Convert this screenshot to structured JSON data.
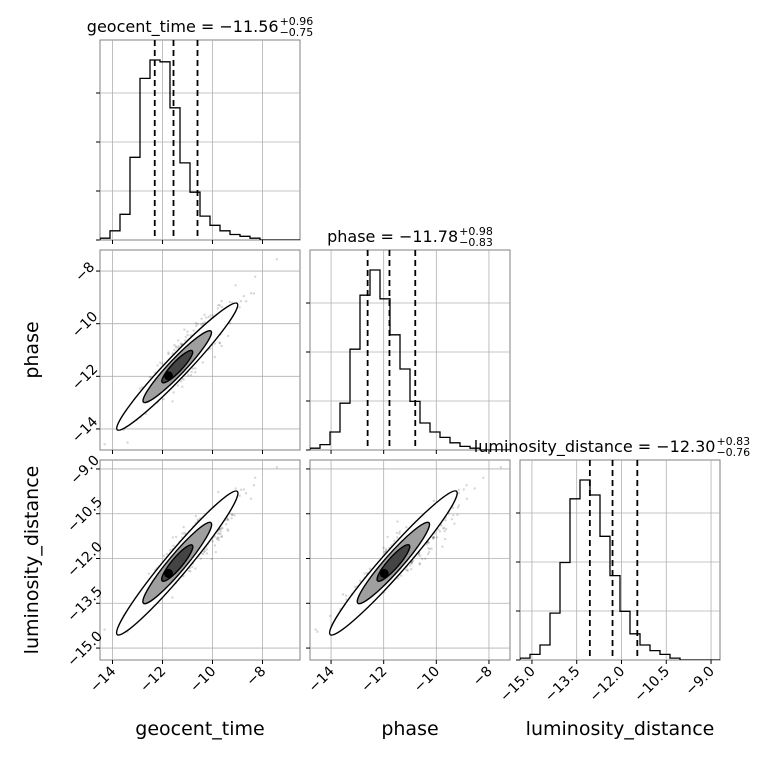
{
  "chart_data": {
    "type": "corner",
    "parameters": [
      "geocent_time",
      "phase",
      "luminosity_distance"
    ],
    "axis_labels": [
      "geocent_time",
      "phase",
      "luminosity_distance"
    ],
    "titles": [
      {
        "prefix": "geocent_time = −11.56",
        "plus": "+0.96",
        "minus": "−0.75"
      },
      {
        "prefix": "phase = −11.78",
        "plus": "+0.98",
        "minus": "−0.83"
      },
      {
        "prefix": "luminosity_distance = −12.30",
        "plus": "+0.83",
        "minus": "−0.76"
      }
    ],
    "ranges": [
      [
        -14.5,
        -6.5
      ],
      [
        -14.8,
        -7.2
      ],
      [
        -15.4,
        -8.7
      ]
    ],
    "ticks": [
      {
        "values": [
          -14,
          -12,
          -10,
          -8
        ],
        "labels": [
          "−14",
          "−12",
          "−10",
          "−8"
        ]
      },
      {
        "values": [
          -14,
          -12,
          -10,
          -8
        ],
        "labels": [
          "−14",
          "−12",
          "−10",
          "−8"
        ]
      },
      {
        "values": [
          -15.0,
          -13.5,
          -12.0,
          -10.5,
          -9.0
        ],
        "labels": [
          "−15.0",
          "−13.5",
          "−12.0",
          "−10.5",
          "−9.0"
        ]
      }
    ],
    "quantiles": [
      [
        -12.31,
        -11.56,
        -10.6
      ],
      [
        -12.61,
        -11.78,
        -10.8
      ],
      [
        -13.06,
        -12.3,
        -11.47
      ]
    ],
    "histograms": [
      {
        "edges_start": -14.5,
        "bin_width": 0.4,
        "counts": [
          1,
          5,
          14,
          45,
          88,
          98,
          97,
          72,
          42,
          26,
          13,
          8,
          5,
          3,
          2,
          1,
          0,
          0,
          0,
          0
        ]
      },
      {
        "edges_start": -14.8,
        "bin_width": 0.38,
        "counts": [
          1,
          3,
          10,
          26,
          56,
          86,
          100,
          84,
          64,
          45,
          27,
          15,
          10,
          7,
          4,
          2,
          1,
          0,
          0,
          0
        ]
      },
      {
        "edges_start": -15.4,
        "bin_width": 0.335,
        "counts": [
          1,
          3,
          8,
          25,
          52,
          86,
          96,
          88,
          66,
          45,
          26,
          14,
          8,
          5,
          3,
          1,
          0,
          0,
          0,
          0
        ]
      }
    ],
    "scatter_model": {
      "seed": 7,
      "n": 900,
      "correlation": 0.93
    },
    "grid": true
  }
}
